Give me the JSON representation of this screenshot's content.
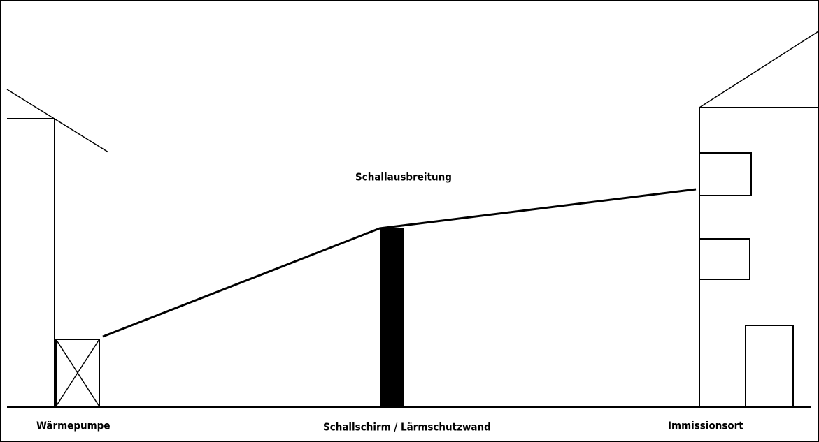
{
  "labels": {
    "source": "Wärmepumpe",
    "barrier": "Schallschirm / Lärmschutzwand",
    "receiver": "Immissionsort",
    "propagation": "Schallausbreitung"
  }
}
